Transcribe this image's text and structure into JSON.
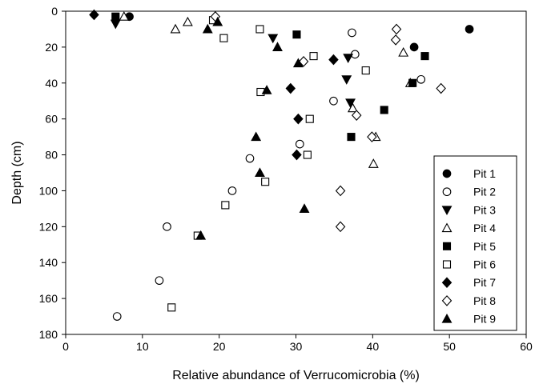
{
  "chart_data": {
    "type": "scatter",
    "title": "",
    "xlabel": "Relative abundance of Verrucomicrobia (%)",
    "ylabel": "Depth (cm)",
    "xlim": [
      0,
      60
    ],
    "ylim": [
      0,
      180
    ],
    "y_inverted": true,
    "x_ticks": [
      0,
      10,
      20,
      30,
      40,
      50,
      60
    ],
    "y_ticks": [
      0,
      20,
      40,
      60,
      80,
      100,
      120,
      140,
      160,
      180
    ],
    "grid": false,
    "legend_position": "bottom-right",
    "series": [
      {
        "name": "Pit 1",
        "marker": "circle",
        "filled": true,
        "points": [
          [
            8.3,
            3
          ],
          [
            45.4,
            20
          ],
          [
            52.6,
            10
          ]
        ]
      },
      {
        "name": "Pit 2",
        "marker": "circle",
        "filled": false,
        "points": [
          [
            37.3,
            12
          ],
          [
            37.7,
            24
          ],
          [
            46.3,
            38
          ],
          [
            34.9,
            50
          ],
          [
            30.5,
            74
          ],
          [
            24,
            82
          ],
          [
            21.7,
            100
          ],
          [
            13.2,
            120
          ],
          [
            12.2,
            150
          ],
          [
            6.7,
            170
          ]
        ]
      },
      {
        "name": "Pit 3",
        "marker": "triangle-down",
        "filled": true,
        "points": [
          [
            6.5,
            7
          ],
          [
            27,
            15
          ],
          [
            36.8,
            26
          ],
          [
            36.6,
            38
          ],
          [
            37.1,
            51
          ]
        ]
      },
      {
        "name": "Pit 4",
        "marker": "triangle-up",
        "filled": false,
        "points": [
          [
            7.6,
            3
          ],
          [
            14.3,
            10
          ],
          [
            15.9,
            6
          ],
          [
            44,
            23
          ],
          [
            44.9,
            40
          ],
          [
            37.4,
            54
          ],
          [
            40.4,
            70
          ],
          [
            40.1,
            85
          ]
        ]
      },
      {
        "name": "Pit 5",
        "marker": "square",
        "filled": true,
        "points": [
          [
            6.5,
            3
          ],
          [
            30.1,
            13
          ],
          [
            46.8,
            25
          ],
          [
            45.2,
            40
          ],
          [
            41.5,
            55
          ],
          [
            37.2,
            70
          ]
        ]
      },
      {
        "name": "Pit 6",
        "marker": "square",
        "filled": false,
        "points": [
          [
            19.2,
            5
          ],
          [
            20.6,
            15
          ],
          [
            25.3,
            10
          ],
          [
            32.3,
            25
          ],
          [
            39.1,
            33
          ],
          [
            25.4,
            45
          ],
          [
            31.8,
            60
          ],
          [
            31.5,
            80
          ],
          [
            26,
            95
          ],
          [
            20.8,
            108
          ],
          [
            17.2,
            125
          ],
          [
            13.8,
            165
          ]
        ]
      },
      {
        "name": "Pit 7",
        "marker": "diamond",
        "filled": true,
        "points": [
          [
            3.7,
            2
          ],
          [
            34.9,
            27
          ],
          [
            29.3,
            43
          ],
          [
            30.3,
            60
          ],
          [
            30.1,
            80
          ]
        ]
      },
      {
        "name": "Pit 8",
        "marker": "diamond",
        "filled": false,
        "points": [
          [
            19.5,
            3
          ],
          [
            43.1,
            10
          ],
          [
            43,
            16
          ],
          [
            31,
            28
          ],
          [
            48.9,
            43
          ],
          [
            37.9,
            58
          ],
          [
            39.9,
            70
          ],
          [
            35.8,
            100
          ],
          [
            35.8,
            120
          ]
        ]
      },
      {
        "name": "Pit 9",
        "marker": "triangle-up",
        "filled": true,
        "points": [
          [
            19.8,
            6
          ],
          [
            18.5,
            10
          ],
          [
            27.6,
            20
          ],
          [
            30.3,
            29
          ],
          [
            26.2,
            44
          ],
          [
            24.8,
            70
          ],
          [
            25.3,
            90
          ],
          [
            31.1,
            110
          ],
          [
            17.6,
            125
          ]
        ]
      }
    ]
  }
}
